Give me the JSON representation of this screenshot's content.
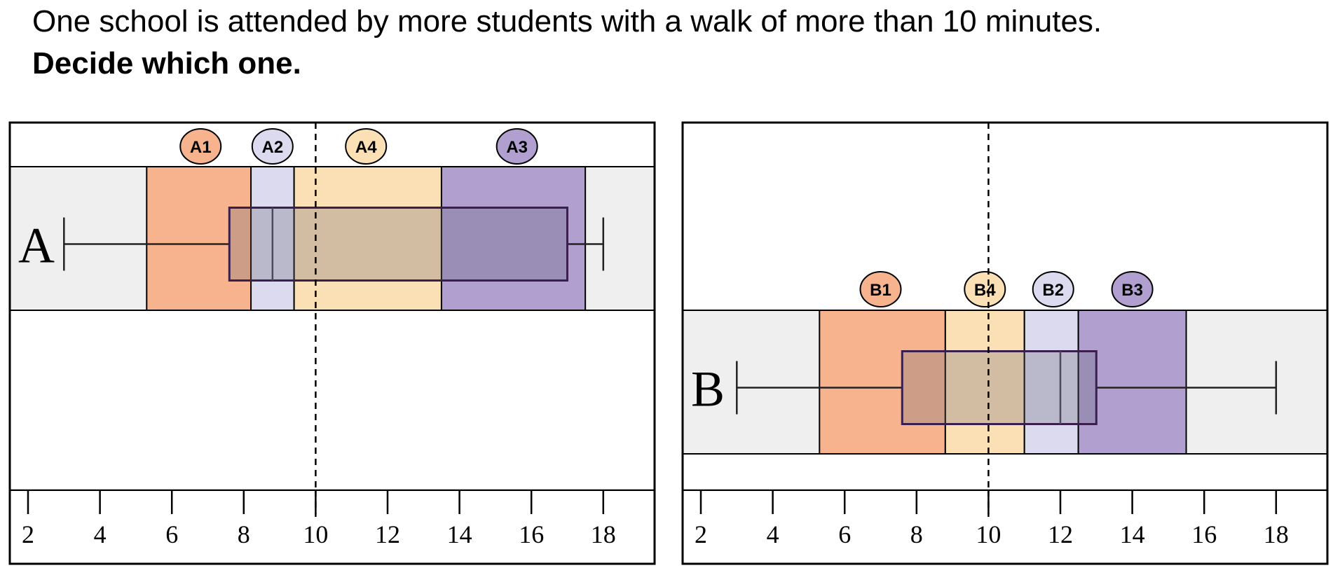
{
  "prompt": {
    "text": "One school is attended by more students with a walk of more than 10 minutes.",
    "instruction": "Decide which one."
  },
  "colors": {
    "orange_zone": "#f6b38e",
    "lavender_zone": "#dcdaee",
    "peach_zone": "#fce0b5",
    "purple_zone": "#b09fcf",
    "band_background": "#efefef",
    "box_fill": "rgba(100,100,120,0.28)",
    "box_stroke": "#3a1f4e"
  },
  "chart_data": [
    {
      "type": "boxplot",
      "name": "A",
      "label": "A",
      "xlim": [
        1.5,
        19.0
      ],
      "xticks": [
        2,
        4,
        6,
        8,
        10,
        12,
        14,
        16,
        18
      ],
      "xtick_labels": [
        "2",
        "4",
        "6",
        "8",
        "10",
        "12",
        "14",
        "16",
        "18"
      ],
      "reference_line": 10,
      "box": {
        "min": 3,
        "q1": 7.6,
        "median": 8.8,
        "q3": 17,
        "max": 18
      },
      "zones": [
        {
          "label": "A1",
          "from": 5.3,
          "to": 8.2,
          "color": "#f6b38e",
          "label_x": 6.8
        },
        {
          "label": "A2",
          "from": 8.2,
          "to": 9.4,
          "color": "#dcdaee",
          "label_x": 8.8
        },
        {
          "label": "A4",
          "from": 9.4,
          "to": 13.5,
          "color": "#fce0b5",
          "label_x": 11.4
        },
        {
          "label": "A3",
          "from": 13.5,
          "to": 17.5,
          "color": "#b09fcf",
          "label_x": 15.6
        }
      ]
    },
    {
      "type": "boxplot",
      "name": "B",
      "label": "B",
      "xlim": [
        1.5,
        19.0
      ],
      "xticks": [
        2,
        4,
        6,
        8,
        10,
        12,
        14,
        16,
        18
      ],
      "xtick_labels": [
        "2",
        "4",
        "6",
        "8",
        "10",
        "12",
        "14",
        "16",
        "18"
      ],
      "reference_line": 10,
      "box": {
        "min": 3,
        "q1": 7.6,
        "median": 12,
        "q3": 13,
        "max": 18
      },
      "zones": [
        {
          "label": "B1",
          "from": 5.3,
          "to": 8.8,
          "color": "#f6b38e",
          "label_x": 7.0
        },
        {
          "label": "B4",
          "from": 8.8,
          "to": 11.0,
          "color": "#fce0b5",
          "label_x": 9.9
        },
        {
          "label": "B2",
          "from": 11.0,
          "to": 12.5,
          "color": "#dcdaee",
          "label_x": 11.8
        },
        {
          "label": "B3",
          "from": 12.5,
          "to": 15.5,
          "color": "#b09fcf",
          "label_x": 14.0
        }
      ]
    }
  ]
}
